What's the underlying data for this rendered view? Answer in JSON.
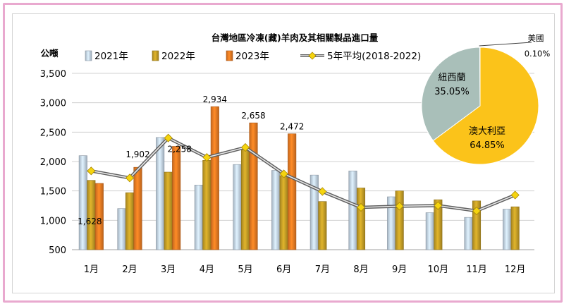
{
  "chart_data": [
    {
      "type": "bar",
      "title": "台灣地區冷凍(藏)羊肉及其相關製品進口量",
      "ylabel": "公噸",
      "ylim": [
        500,
        3500
      ],
      "yticks": [
        "500",
        "1,000",
        "1,500",
        "2,000",
        "2,500",
        "3,000",
        "3,500"
      ],
      "categories": [
        "1月",
        "2月",
        "3月",
        "4月",
        "5月",
        "6月",
        "7月",
        "8月",
        "9月",
        "10月",
        "11月",
        "12月"
      ],
      "grid": true,
      "legend_position": "top",
      "series": [
        {
          "name": "2021年",
          "kind": "bar",
          "color": "#c8d9ea",
          "values": [
            2100,
            1200,
            2410,
            1600,
            1950,
            1850,
            1770,
            1840,
            1400,
            1130,
            1050,
            1190
          ]
        },
        {
          "name": "2022年",
          "kind": "bar",
          "color": "#c9a227",
          "values": [
            1680,
            1470,
            1820,
            2020,
            2220,
            1760,
            1320,
            1550,
            1500,
            1350,
            1330,
            1230
          ]
        },
        {
          "name": "2023年",
          "kind": "bar",
          "color": "#ef7d23",
          "values": [
            1628,
            1902,
            2258,
            2934,
            2658,
            2472,
            null,
            null,
            null,
            null,
            null,
            null
          ]
        },
        {
          "name": "5年平均(2018-2022)",
          "kind": "line",
          "color": "#7a7a7a",
          "marker_color": "#f5d40f",
          "values": [
            1840,
            1720,
            2400,
            2070,
            2240,
            1790,
            1490,
            1220,
            1240,
            1250,
            1160,
            1430
          ]
        }
      ],
      "data_labels": [
        {
          "series": "2023年",
          "month": "1月",
          "text": "1,628"
        },
        {
          "series": "2023年",
          "month": "2月",
          "text": "1,902"
        },
        {
          "series": "2023年",
          "month": "3月",
          "text": "2,258"
        },
        {
          "series": "2023年",
          "month": "4月",
          "text": "2,934"
        },
        {
          "series": "2023年",
          "month": "5月",
          "text": "2,658"
        },
        {
          "series": "2023年",
          "month": "6月",
          "text": "2,472"
        }
      ]
    },
    {
      "type": "pie",
      "slices": [
        {
          "label": "澳大利亞",
          "pct_text": "64.85%",
          "value": 64.85,
          "color": "#fbc31a"
        },
        {
          "label": "紐西蘭",
          "pct_text": "35.05%",
          "value": 35.05,
          "color": "#a9bfb9"
        },
        {
          "label": "美國",
          "pct_text": "0.10%",
          "value": 0.1,
          "color": "#5a5a5a"
        }
      ]
    }
  ]
}
